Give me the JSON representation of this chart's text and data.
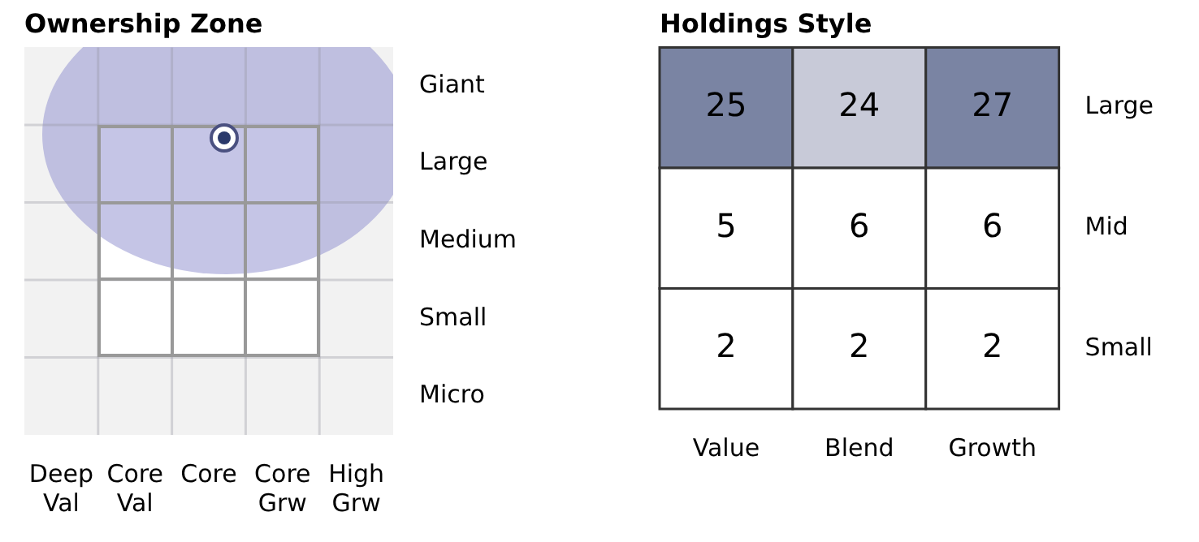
{
  "chart_data": [
    {
      "type": "heatmap",
      "title": "Ownership Zone",
      "categories": [
        "Deep Val",
        "Core Val",
        "Core",
        "Core Grw",
        "High Grw"
      ],
      "y_categories": [
        "Giant",
        "Large",
        "Medium",
        "Small",
        "Micro"
      ],
      "cells": [
        [
          null,
          null,
          null,
          null,
          null
        ],
        [
          null,
          null,
          null,
          null,
          null
        ],
        [
          null,
          null,
          null,
          null,
          null
        ],
        [
          null,
          null,
          null,
          null,
          null
        ],
        [
          null,
          null,
          null,
          null,
          null
        ]
      ],
      "grid": true
    },
    {
      "type": "heatmap",
      "title": "Holdings Style",
      "categories": [
        "Value",
        "Blend",
        "Growth"
      ],
      "y_categories": [
        "Large",
        "Mid",
        "Small"
      ],
      "cells": [
        [
          25,
          24,
          27
        ],
        [
          5,
          6,
          6
        ],
        [
          2,
          2,
          2
        ]
      ],
      "colors": [
        [
          "#7a84a3",
          "#c8cad8",
          "#7a84a3"
        ],
        [
          "#ffffff",
          "#ffffff",
          "#ffffff"
        ],
        [
          "#ffffff",
          "#ffffff",
          "#ffffff"
        ]
      ],
      "data_labels": true
    }
  ]
}
